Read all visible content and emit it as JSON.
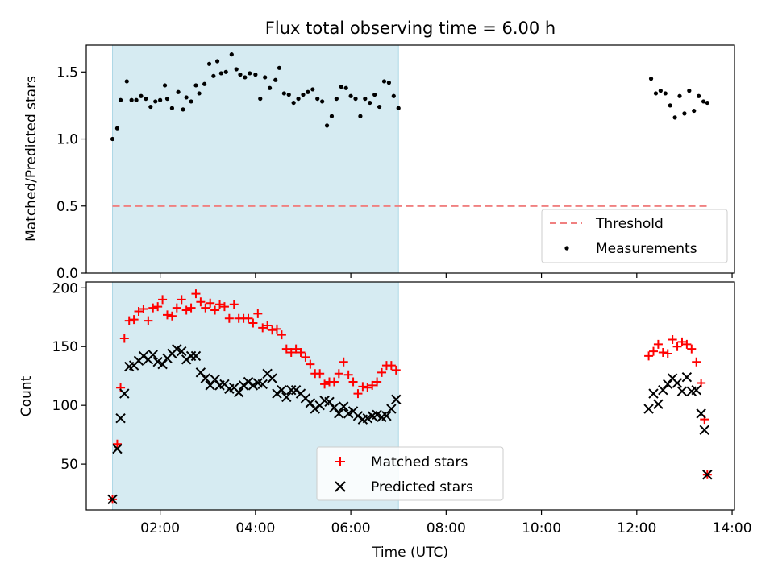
{
  "chart_data": [
    {
      "type": "scatter",
      "title": "Flux total observing time = 6.00 h",
      "ylabel": "Matched/Predicted stars",
      "xlabel": "",
      "xlim": [
        0.45,
        14.05
      ],
      "ylim": [
        0.0,
        1.7
      ],
      "yticks": [
        0.0,
        0.5,
        1.0,
        1.5
      ],
      "ytick_labels": [
        "0.0",
        "0.5",
        "1.0",
        "1.5"
      ],
      "grid": false,
      "legend": "lower-right",
      "shaded_interval": {
        "start": 1.0,
        "end": 7.0,
        "color": "#add8e6"
      },
      "threshold": {
        "name": "Threshold",
        "y": 0.5,
        "x_start": 1.0,
        "x_end": 13.48,
        "color": "#f08080"
      },
      "series": [
        {
          "name": "Measurements",
          "color": "#000000",
          "marker": "dot",
          "x": [
            1.0,
            1.1,
            1.17,
            1.3,
            1.4,
            1.5,
            1.6,
            1.7,
            1.8,
            1.9,
            2.0,
            2.1,
            2.15,
            2.25,
            2.38,
            2.48,
            2.55,
            2.65,
            2.75,
            2.82,
            2.93,
            3.03,
            3.12,
            3.2,
            3.28,
            3.38,
            3.5,
            3.6,
            3.68,
            3.78,
            3.88,
            4.0,
            4.1,
            4.2,
            4.3,
            4.42,
            4.5,
            4.6,
            4.7,
            4.8,
            4.9,
            5.0,
            5.1,
            5.2,
            5.3,
            5.4,
            5.5,
            5.6,
            5.7,
            5.8,
            5.9,
            6.0,
            6.1,
            6.2,
            6.3,
            6.4,
            6.5,
            6.6,
            6.7,
            6.8,
            6.9,
            7.0,
            12.3,
            12.4,
            12.5,
            12.6,
            12.7,
            12.8,
            12.9,
            13.0,
            13.1,
            13.2,
            13.3,
            13.4,
            13.48
          ],
          "y": [
            1.0,
            1.08,
            1.29,
            1.43,
            1.29,
            1.29,
            1.32,
            1.3,
            1.24,
            1.28,
            1.29,
            1.4,
            1.3,
            1.23,
            1.35,
            1.22,
            1.31,
            1.28,
            1.4,
            1.34,
            1.41,
            1.56,
            1.47,
            1.58,
            1.49,
            1.5,
            1.63,
            1.52,
            1.48,
            1.46,
            1.49,
            1.48,
            1.3,
            1.46,
            1.38,
            1.44,
            1.53,
            1.34,
            1.33,
            1.27,
            1.3,
            1.33,
            1.35,
            1.37,
            1.3,
            1.28,
            1.1,
            1.17,
            1.3,
            1.39,
            1.38,
            1.32,
            1.3,
            1.17,
            1.3,
            1.27,
            1.33,
            1.24,
            1.43,
            1.42,
            1.32,
            1.23,
            1.45,
            1.34,
            1.36,
            1.34,
            1.25,
            1.16,
            1.32,
            1.19,
            1.36,
            1.21,
            1.32,
            1.28,
            1.27
          ]
        }
      ]
    },
    {
      "type": "scatter",
      "title": "",
      "xlabel": "Time (UTC)",
      "ylabel": "Count",
      "xlim": [
        0.45,
        14.05
      ],
      "ylim": [
        11,
        205
      ],
      "xticks": [
        2,
        4,
        6,
        8,
        10,
        12,
        14
      ],
      "xtick_labels": [
        "02:00",
        "04:00",
        "06:00",
        "08:00",
        "10:00",
        "12:00",
        "14:00"
      ],
      "yticks": [
        50,
        100,
        150,
        200
      ],
      "ytick_labels": [
        "50",
        "100",
        "150",
        "200"
      ],
      "grid": false,
      "legend": "lower-center",
      "shaded_interval": {
        "start": 1.0,
        "end": 7.0,
        "color": "#add8e6"
      },
      "series": [
        {
          "name": "Matched stars",
          "color": "#ff0000",
          "marker": "plus",
          "x": [
            1.0,
            1.1,
            1.17,
            1.25,
            1.35,
            1.45,
            1.55,
            1.65,
            1.75,
            1.85,
            1.95,
            2.05,
            2.15,
            2.25,
            2.35,
            2.45,
            2.55,
            2.65,
            2.75,
            2.85,
            2.95,
            3.05,
            3.15,
            3.25,
            3.35,
            3.45,
            3.55,
            3.65,
            3.75,
            3.85,
            3.95,
            4.05,
            4.15,
            4.25,
            4.35,
            4.45,
            4.55,
            4.65,
            4.75,
            4.85,
            4.95,
            5.05,
            5.15,
            5.25,
            5.35,
            5.45,
            5.55,
            5.65,
            5.75,
            5.85,
            5.95,
            6.05,
            6.15,
            6.25,
            6.35,
            6.45,
            6.55,
            6.65,
            6.75,
            6.85,
            6.95,
            12.25,
            12.35,
            12.45,
            12.55,
            12.65,
            12.75,
            12.85,
            12.95,
            13.05,
            13.15,
            13.25,
            13.35,
            13.42,
            13.48
          ],
          "y": [
            20,
            67,
            115,
            157,
            172,
            173,
            180,
            182,
            172,
            183,
            184,
            190,
            177,
            176,
            183,
            190,
            181,
            183,
            195,
            188,
            183,
            187,
            181,
            186,
            184,
            174,
            186,
            174,
            174,
            174,
            170,
            178,
            166,
            168,
            164,
            165,
            160,
            148,
            145,
            148,
            145,
            141,
            135,
            127,
            127,
            118,
            120,
            120,
            127,
            137,
            126,
            120,
            110,
            116,
            115,
            117,
            120,
            128,
            134,
            134,
            130,
            142,
            146,
            152,
            145,
            144,
            156,
            150,
            154,
            152,
            148,
            137,
            119,
            88,
            41
          ]
        },
        {
          "name": "Predicted stars",
          "color": "#000000",
          "marker": "x",
          "x": [
            1.0,
            1.1,
            1.17,
            1.25,
            1.35,
            1.45,
            1.55,
            1.65,
            1.75,
            1.85,
            1.95,
            2.05,
            2.15,
            2.25,
            2.35,
            2.45,
            2.55,
            2.65,
            2.75,
            2.85,
            2.95,
            3.05,
            3.15,
            3.25,
            3.35,
            3.45,
            3.55,
            3.65,
            3.75,
            3.85,
            3.95,
            4.05,
            4.15,
            4.25,
            4.35,
            4.45,
            4.55,
            4.65,
            4.75,
            4.85,
            4.95,
            5.05,
            5.15,
            5.25,
            5.35,
            5.45,
            5.55,
            5.65,
            5.75,
            5.85,
            5.95,
            6.05,
            6.15,
            6.25,
            6.35,
            6.45,
            6.55,
            6.65,
            6.75,
            6.85,
            6.95,
            12.25,
            12.35,
            12.45,
            12.55,
            12.65,
            12.75,
            12.85,
            12.95,
            13.05,
            13.15,
            13.25,
            13.35,
            13.42,
            13.48
          ],
          "y": [
            20,
            63,
            89,
            110,
            133,
            134,
            138,
            142,
            139,
            143,
            137,
            135,
            140,
            144,
            148,
            146,
            139,
            142,
            142,
            128,
            123,
            117,
            122,
            117,
            118,
            114,
            115,
            111,
            117,
            120,
            117,
            119,
            118,
            127,
            123,
            110,
            113,
            107,
            113,
            113,
            110,
            106,
            102,
            97,
            100,
            104,
            103,
            98,
            93,
            99,
            93,
            95,
            91,
            88,
            89,
            91,
            92,
            90,
            91,
            97,
            105,
            97,
            110,
            101,
            113,
            118,
            123,
            119,
            112,
            124,
            112,
            113,
            93,
            79,
            41
          ]
        }
      ]
    }
  ]
}
